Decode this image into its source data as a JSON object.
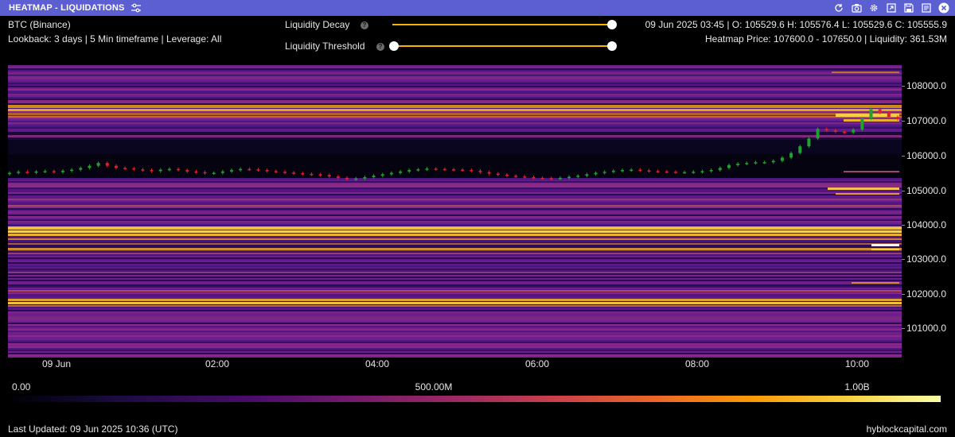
{
  "window": {
    "title": "HEATMAP - LIQUIDATIONS",
    "icons": [
      "refresh-icon",
      "camera-icon",
      "gear-icon",
      "share-icon",
      "save-icon",
      "copy-icon",
      "close-icon"
    ]
  },
  "header": {
    "pair": "BTC (Binance)",
    "settings": "Lookback: 3 days | 5 Min timeframe | Leverage: All",
    "ohlc": "09 Jun 2025 03:45 | O: 105529.6 H: 105576.4 L: 105529.6 C: 105555.9",
    "heatmap_info": "Heatmap Price: 107600.0 - 107650.0 | Liquidity: 361.53M"
  },
  "controls": {
    "decay_label": "Liquidity Decay",
    "threshold_label": "Liquidity Threshold",
    "help_glyph": "?",
    "decay_value": 1.0,
    "threshold_range": [
      0.0,
      1.0
    ]
  },
  "chart_data": {
    "type": "heatmap",
    "x_ticks": [
      "09 Jun",
      "02:00",
      "04:00",
      "06:00",
      "08:00",
      "10:00"
    ],
    "y_ticks": [
      "108000.0",
      "107000.0",
      "106000.0",
      "105000.0",
      "104000.0",
      "103000.0",
      "102000.0",
      "101000.0"
    ],
    "ylim": [
      100350,
      108600
    ],
    "colorbar": {
      "labels": [
        "0.00",
        "500.00M",
        "1.00B"
      ],
      "range": [
        0,
        1000000000
      ]
    },
    "candles_close": [
      105560,
      105590,
      105570,
      105600,
      105610,
      105580,
      105620,
      105650,
      105700,
      105760,
      105840,
      105760,
      105700,
      105690,
      105660,
      105640,
      105610,
      105650,
      105670,
      105640,
      105600,
      105580,
      105550,
      105560,
      105600,
      105640,
      105670,
      105660,
      105640,
      105610,
      105590,
      105570,
      105550,
      105530,
      105520,
      105500,
      105460,
      105420,
      105380,
      105400,
      105440,
      105480,
      105520,
      105560,
      105600,
      105640,
      105660,
      105680,
      105670,
      105660,
      105650,
      105640,
      105620,
      105580,
      105540,
      105510,
      105480,
      105460,
      105440,
      105420,
      105410,
      105400,
      105420,
      105450,
      105480,
      105520,
      105560,
      105590,
      105620,
      105640,
      105650,
      105630,
      105610,
      105600,
      105590,
      105580,
      105580,
      105590,
      105610,
      105640,
      105700,
      105780,
      105820,
      105840,
      105860,
      105860,
      105900,
      105990,
      106120,
      106310,
      106530,
      106800,
      106760,
      106720,
      106700,
      106780,
      107100,
      107360,
      107260,
      107140,
      107080
    ]
  },
  "legend": {
    "min": "0.00",
    "mid": "500.00M",
    "max": "1.00B"
  },
  "footer": {
    "updated": "Last Updated: 09 Jun 2025 10:36 (UTC)",
    "brand": "hyblockcapital.com"
  },
  "colors": {
    "titlebar": "#5b5fd1",
    "accent": "#f4b400",
    "up": "#1fa32e",
    "down": "#e0202a"
  }
}
